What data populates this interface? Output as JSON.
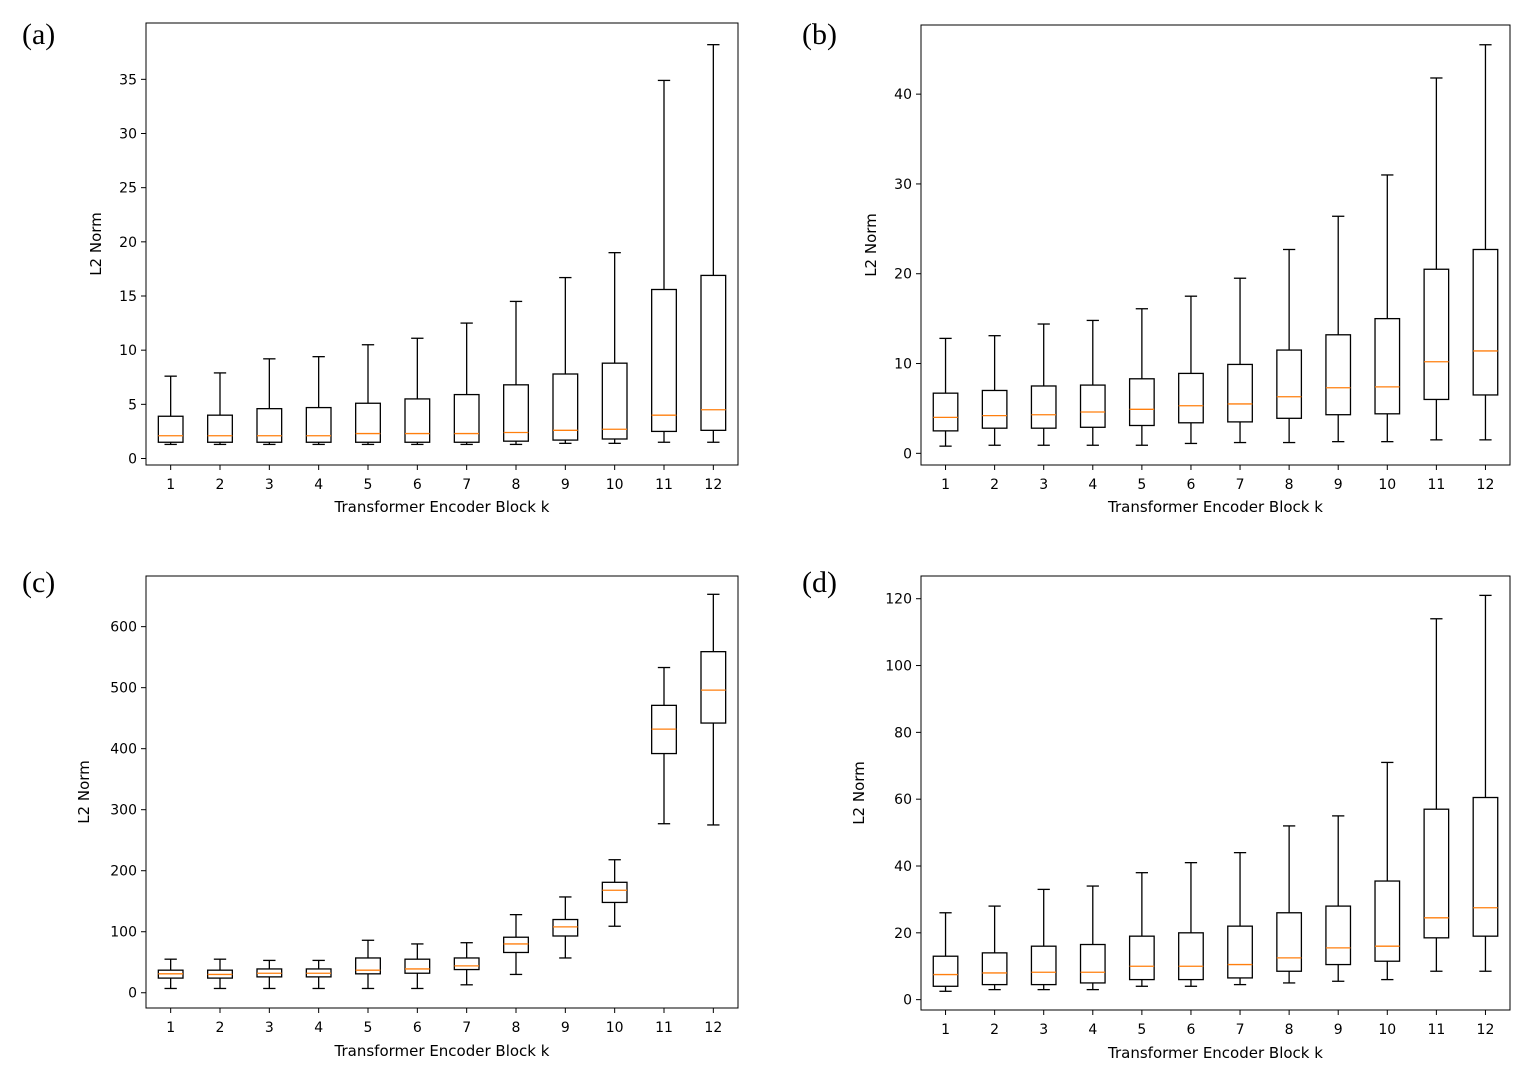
{
  "panel_labels": [
    "(a)",
    "(b)",
    "(c)",
    "(d)"
  ],
  "colors": {
    "box": "#000000",
    "median": "#ff7f0e",
    "background": "#ffffff"
  },
  "chart_data": [
    {
      "type": "boxplot",
      "title": "",
      "xlabel": "Transformer Encoder Block k",
      "ylabel": "L2 Norm",
      "categories": [
        "1",
        "2",
        "3",
        "4",
        "5",
        "6",
        "7",
        "8",
        "9",
        "10",
        "11",
        "12"
      ],
      "ylim": [
        -0.6,
        40.2
      ],
      "yticks": [
        0,
        5,
        10,
        15,
        20,
        25,
        30,
        35
      ],
      "grid": false,
      "boxes": [
        {
          "whislo": 1.3,
          "q1": 1.5,
          "med": 2.1,
          "q3": 3.9,
          "whishi": 7.6
        },
        {
          "whislo": 1.3,
          "q1": 1.5,
          "med": 2.1,
          "q3": 4.0,
          "whishi": 7.9
        },
        {
          "whislo": 1.3,
          "q1": 1.5,
          "med": 2.1,
          "q3": 4.6,
          "whishi": 9.2
        },
        {
          "whislo": 1.3,
          "q1": 1.5,
          "med": 2.1,
          "q3": 4.7,
          "whishi": 9.4
        },
        {
          "whislo": 1.3,
          "q1": 1.5,
          "med": 2.3,
          "q3": 5.1,
          "whishi": 10.5
        },
        {
          "whislo": 1.3,
          "q1": 1.5,
          "med": 2.3,
          "q3": 5.5,
          "whishi": 11.1
        },
        {
          "whislo": 1.3,
          "q1": 1.5,
          "med": 2.3,
          "q3": 5.9,
          "whishi": 12.5
        },
        {
          "whislo": 1.3,
          "q1": 1.6,
          "med": 2.4,
          "q3": 6.8,
          "whishi": 14.5
        },
        {
          "whislo": 1.4,
          "q1": 1.7,
          "med": 2.6,
          "q3": 7.8,
          "whishi": 16.7
        },
        {
          "whislo": 1.4,
          "q1": 1.8,
          "med": 2.7,
          "q3": 8.8,
          "whishi": 19.0
        },
        {
          "whislo": 1.5,
          "q1": 2.5,
          "med": 4.0,
          "q3": 15.6,
          "whishi": 34.9
        },
        {
          "whislo": 1.5,
          "q1": 2.6,
          "med": 4.5,
          "q3": 16.9,
          "whishi": 38.2
        }
      ]
    },
    {
      "type": "boxplot",
      "title": "",
      "xlabel": "Transformer Encoder Block k",
      "ylabel": "L2 Norm",
      "categories": [
        "1",
        "2",
        "3",
        "4",
        "5",
        "6",
        "7",
        "8",
        "9",
        "10",
        "11",
        "12"
      ],
      "ylim": [
        -1.3,
        47.7
      ],
      "yticks": [
        0,
        10,
        20,
        30,
        40
      ],
      "grid": false,
      "boxes": [
        {
          "whislo": 0.8,
          "q1": 2.5,
          "med": 4.0,
          "q3": 6.7,
          "whishi": 12.8
        },
        {
          "whislo": 0.9,
          "q1": 2.8,
          "med": 4.2,
          "q3": 7.0,
          "whishi": 13.1
        },
        {
          "whislo": 0.9,
          "q1": 2.8,
          "med": 4.3,
          "q3": 7.5,
          "whishi": 14.4
        },
        {
          "whislo": 0.9,
          "q1": 2.9,
          "med": 4.6,
          "q3": 7.6,
          "whishi": 14.8
        },
        {
          "whislo": 0.9,
          "q1": 3.1,
          "med": 4.9,
          "q3": 8.3,
          "whishi": 16.1
        },
        {
          "whislo": 1.1,
          "q1": 3.4,
          "med": 5.3,
          "q3": 8.9,
          "whishi": 17.5
        },
        {
          "whislo": 1.2,
          "q1": 3.5,
          "med": 5.5,
          "q3": 9.9,
          "whishi": 19.5
        },
        {
          "whislo": 1.2,
          "q1": 3.9,
          "med": 6.3,
          "q3": 11.5,
          "whishi": 22.7
        },
        {
          "whislo": 1.3,
          "q1": 4.3,
          "med": 7.3,
          "q3": 13.2,
          "whishi": 26.4
        },
        {
          "whislo": 1.3,
          "q1": 4.4,
          "med": 7.4,
          "q3": 15.0,
          "whishi": 31.0
        },
        {
          "whislo": 1.5,
          "q1": 6.0,
          "med": 10.2,
          "q3": 20.5,
          "whishi": 41.8
        },
        {
          "whislo": 1.5,
          "q1": 6.5,
          "med": 11.4,
          "q3": 22.7,
          "whishi": 45.5
        }
      ]
    },
    {
      "type": "boxplot",
      "title": "",
      "xlabel": "Transformer Encoder Block k",
      "ylabel": "L2 Norm",
      "categories": [
        "1",
        "2",
        "3",
        "4",
        "5",
        "6",
        "7",
        "8",
        "9",
        "10",
        "11",
        "12"
      ],
      "ylim": [
        -25,
        683
      ],
      "yticks": [
        0,
        100,
        200,
        300,
        400,
        500,
        600
      ],
      "grid": false,
      "boxes": [
        {
          "whislo": 7,
          "q1": 24,
          "med": 31,
          "q3": 37,
          "whishi": 55
        },
        {
          "whislo": 7,
          "q1": 24,
          "med": 30,
          "q3": 37,
          "whishi": 55
        },
        {
          "whislo": 7,
          "q1": 26,
          "med": 32,
          "q3": 39,
          "whishi": 53
        },
        {
          "whislo": 7,
          "q1": 26,
          "med": 32,
          "q3": 39,
          "whishi": 53
        },
        {
          "whislo": 7,
          "q1": 31,
          "med": 37,
          "q3": 57,
          "whishi": 86
        },
        {
          "whislo": 7,
          "q1": 32,
          "med": 39,
          "q3": 55,
          "whishi": 80
        },
        {
          "whislo": 13,
          "q1": 38,
          "med": 44,
          "q3": 57,
          "whishi": 82
        },
        {
          "whislo": 30,
          "q1": 66,
          "med": 80,
          "q3": 91,
          "whishi": 128
        },
        {
          "whislo": 57,
          "q1": 93,
          "med": 108,
          "q3": 120,
          "whishi": 157
        },
        {
          "whislo": 109,
          "q1": 148,
          "med": 168,
          "q3": 181,
          "whishi": 218
        },
        {
          "whislo": 277,
          "q1": 392,
          "med": 432,
          "q3": 471,
          "whishi": 533
        },
        {
          "whislo": 275,
          "q1": 442,
          "med": 496,
          "q3": 559,
          "whishi": 653
        }
      ]
    },
    {
      "type": "boxplot",
      "title": "",
      "xlabel": "Transformer Encoder Block k",
      "ylabel": "L2 Norm",
      "categories": [
        "1",
        "2",
        "3",
        "4",
        "5",
        "6",
        "7",
        "8",
        "9",
        "10",
        "11",
        "12"
      ],
      "ylim": [
        -3.1,
        126.8
      ],
      "yticks": [
        0,
        20,
        40,
        60,
        80,
        100,
        120
      ],
      "grid": false,
      "boxes": [
        {
          "whislo": 2.5,
          "q1": 4.0,
          "med": 7.5,
          "q3": 13.0,
          "whishi": 26.0
        },
        {
          "whislo": 3.0,
          "q1": 4.5,
          "med": 8.0,
          "q3": 14.0,
          "whishi": 28.0
        },
        {
          "whislo": 3.0,
          "q1": 4.5,
          "med": 8.2,
          "q3": 16.0,
          "whishi": 33.0
        },
        {
          "whislo": 3.0,
          "q1": 5.0,
          "med": 8.2,
          "q3": 16.5,
          "whishi": 34.0
        },
        {
          "whislo": 4.0,
          "q1": 6.0,
          "med": 10.0,
          "q3": 19.0,
          "whishi": 38.0
        },
        {
          "whislo": 4.0,
          "q1": 6.0,
          "med": 10.0,
          "q3": 20.0,
          "whishi": 41.0
        },
        {
          "whislo": 4.5,
          "q1": 6.5,
          "med": 10.5,
          "q3": 22.0,
          "whishi": 44.0
        },
        {
          "whislo": 5.0,
          "q1": 8.5,
          "med": 12.5,
          "q3": 26.0,
          "whishi": 52.0
        },
        {
          "whislo": 5.5,
          "q1": 10.5,
          "med": 15.5,
          "q3": 28.0,
          "whishi": 55.0
        },
        {
          "whislo": 6.0,
          "q1": 11.5,
          "med": 16.0,
          "q3": 35.5,
          "whishi": 71.0
        },
        {
          "whislo": 8.5,
          "q1": 18.5,
          "med": 24.5,
          "q3": 57.0,
          "whishi": 114.0
        },
        {
          "whislo": 8.5,
          "q1": 19.0,
          "med": 27.5,
          "q3": 60.5,
          "whishi": 121.0
        }
      ]
    }
  ]
}
